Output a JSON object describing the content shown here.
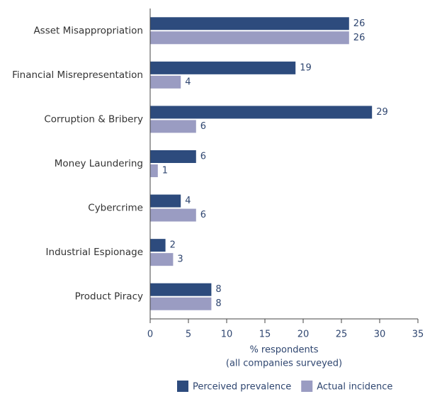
{
  "chart_data": {
    "type": "bar",
    "orientation": "horizontal",
    "categories": [
      "Asset Misappropriation",
      "Financial Misrepresentation",
      "Corruption & Bribery",
      "Money Laundering",
      "Cybercrime",
      "Industrial Espionage",
      "Product Piracy"
    ],
    "series": [
      {
        "name": "Perceived prevalence",
        "color": "#2d4b7d",
        "values": [
          26,
          19,
          29,
          6,
          4,
          2,
          8
        ]
      },
      {
        "name": "Actual incidence",
        "color": "#9a9cc2",
        "values": [
          26,
          4,
          6,
          1,
          6,
          3,
          8
        ]
      }
    ],
    "xlabel": [
      "% respondents",
      "(all companies surveyed)"
    ],
    "xlim": [
      0,
      35
    ],
    "xticks": [
      0,
      5,
      10,
      15,
      20,
      25,
      30,
      35
    ],
    "legend": "bottom"
  }
}
